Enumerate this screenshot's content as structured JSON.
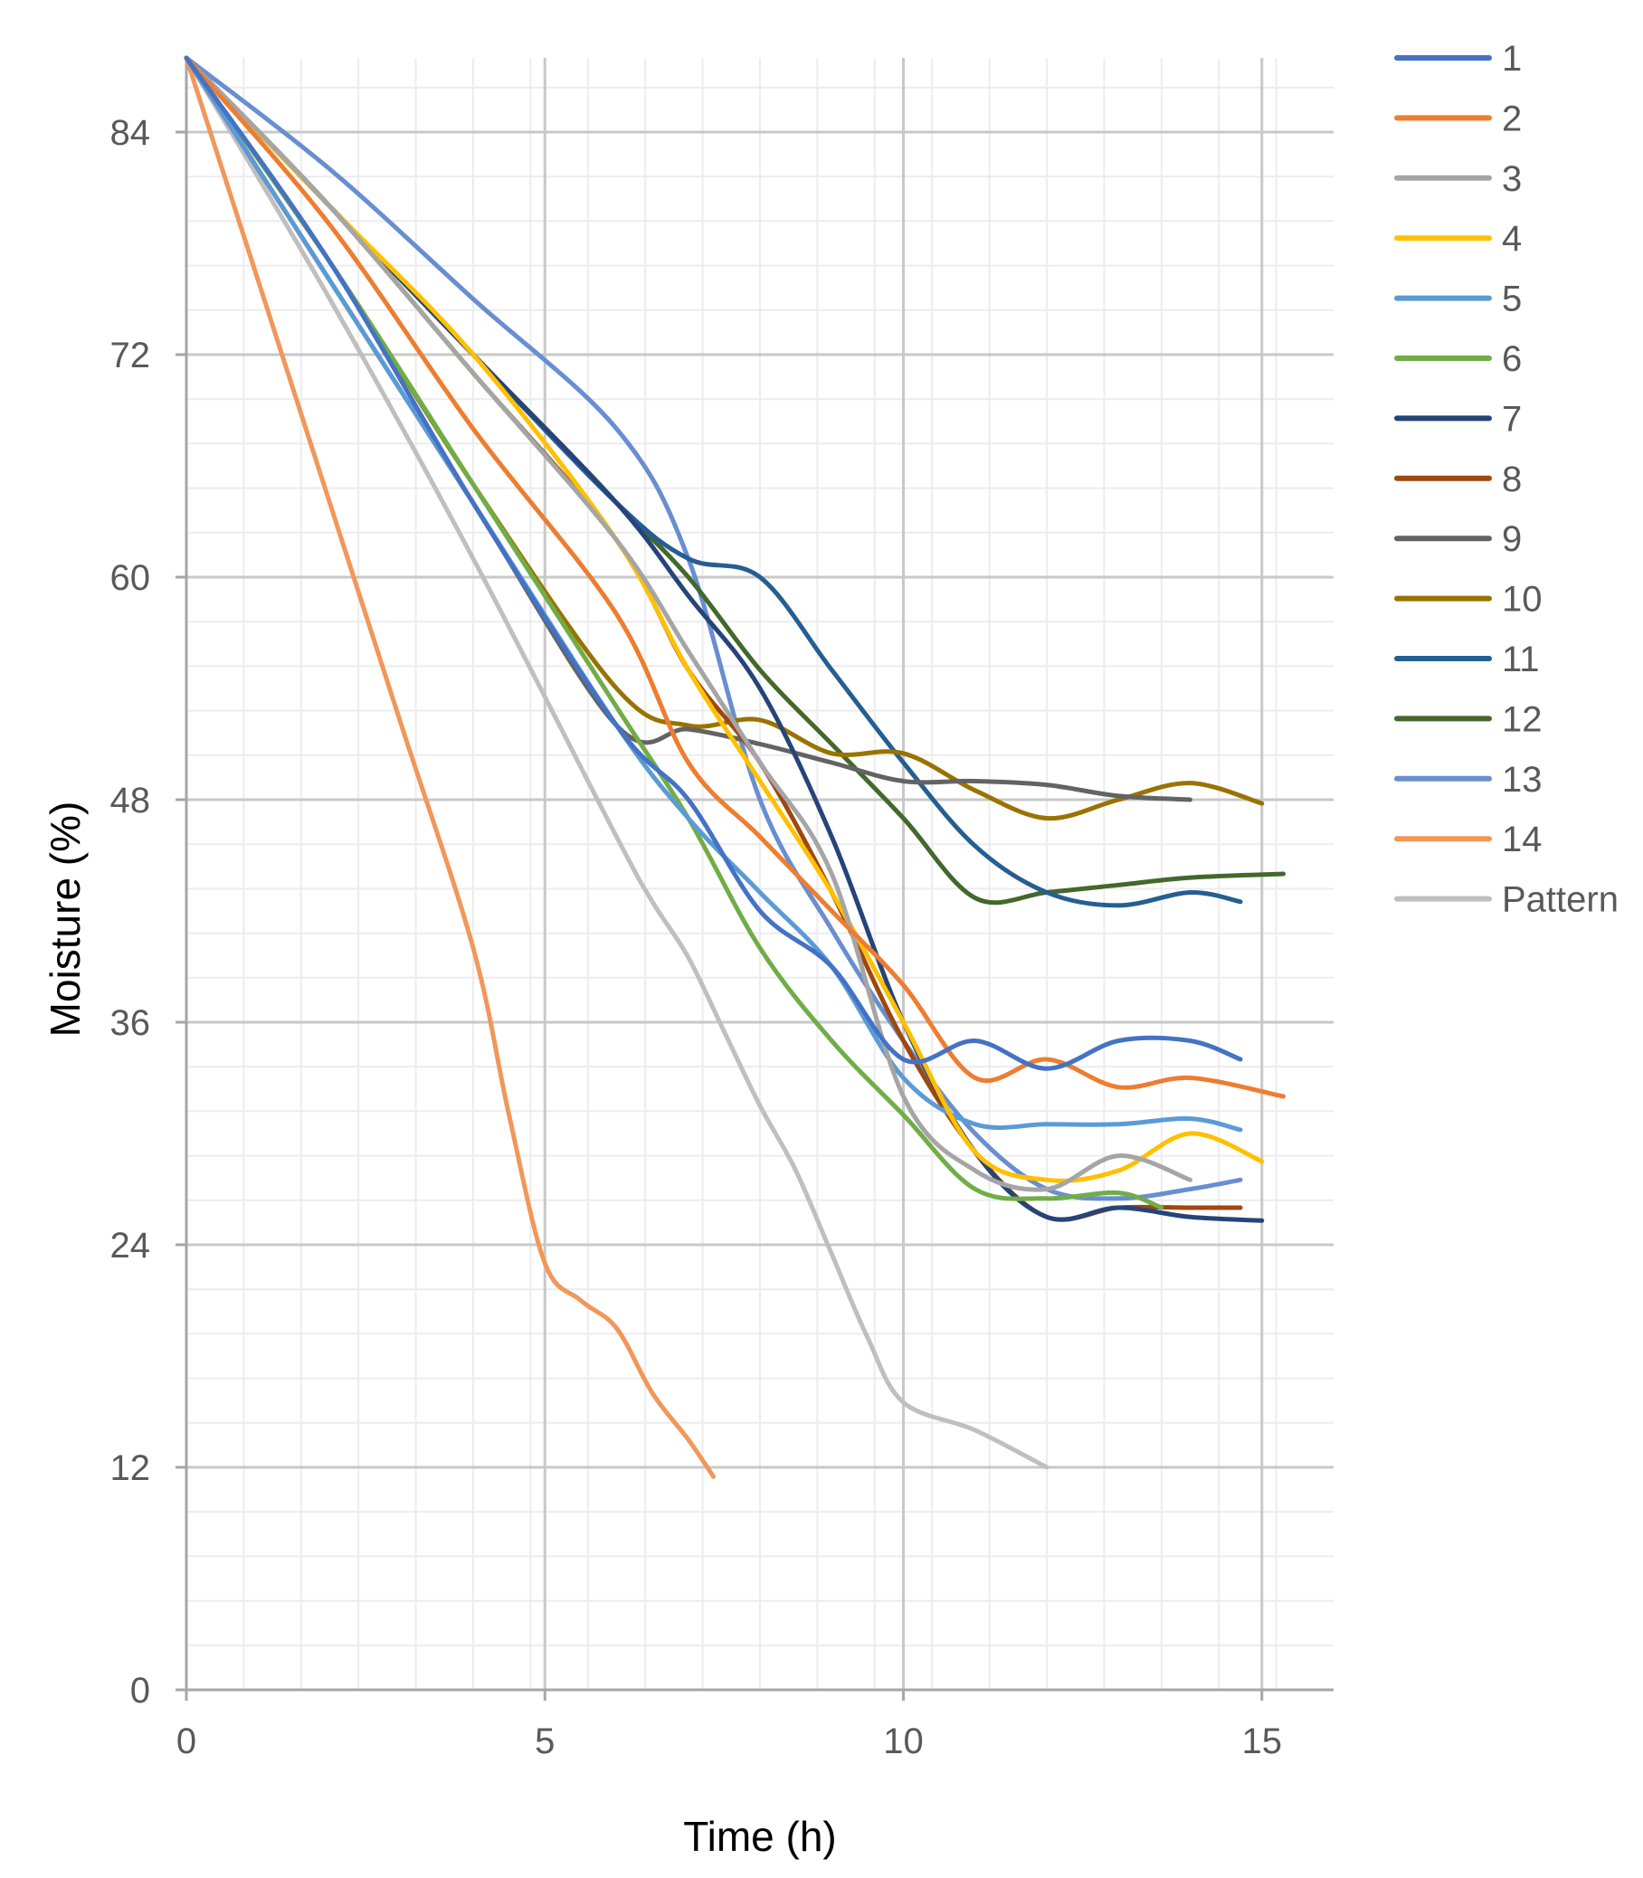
{
  "chart_data": {
    "type": "line",
    "title": "",
    "xlabel": "Time (h)",
    "ylabel": "Moisture (%)",
    "xlim": [
      0,
      16
    ],
    "ylim": [
      0,
      88
    ],
    "x_ticks": [
      0,
      5,
      10,
      15
    ],
    "y_ticks": [
      0,
      12,
      24,
      36,
      48,
      60,
      72,
      84
    ],
    "grid": true,
    "legend_position": "right",
    "series": [
      {
        "name": "1",
        "color": "#4472C4",
        "x": [
          0,
          2,
          4,
          6,
          7,
          8,
          9,
          10,
          11,
          12,
          13,
          14,
          14.7
        ],
        "y": [
          88,
          77,
          64,
          52,
          48,
          42,
          39,
          34,
          35,
          33.5,
          35,
          35,
          34
        ]
      },
      {
        "name": "2",
        "color": "#ED7D31",
        "x": [
          0,
          2,
          4,
          6,
          7,
          8,
          9,
          10,
          11,
          12,
          13,
          14,
          15.3
        ],
        "y": [
          88,
          79,
          68,
          58,
          50,
          46,
          42,
          38,
          33,
          34,
          32.5,
          33,
          32
        ]
      },
      {
        "name": "3",
        "color": "#A5A5A5",
        "x": [
          0,
          2,
          4,
          6,
          7,
          8,
          9,
          10,
          11,
          12,
          13,
          14
        ],
        "y": [
          88,
          80,
          71,
          62,
          56,
          50,
          44,
          32,
          28,
          27,
          28.8,
          27.5
        ]
      },
      {
        "name": "4",
        "color": "#FFC000",
        "x": [
          0,
          2,
          4,
          6,
          7,
          8,
          9,
          10,
          11,
          12,
          13,
          14,
          15
        ],
        "y": [
          88,
          80,
          72,
          62,
          55,
          49,
          43,
          36,
          29,
          27.5,
          28,
          30,
          28.5
        ]
      },
      {
        "name": "5",
        "color": "#5B9BD5",
        "x": [
          0,
          2,
          4,
          6,
          7,
          8,
          9,
          10,
          11,
          12,
          13,
          14,
          14.7
        ],
        "y": [
          88,
          76,
          64,
          52,
          47,
          43,
          39,
          33,
          30.5,
          30.5,
          30.5,
          30.8,
          30.2
        ]
      },
      {
        "name": "6",
        "color": "#70AD47",
        "x": [
          0,
          2,
          4,
          6,
          7,
          8,
          9,
          10,
          11,
          12,
          13,
          13.6
        ],
        "y": [
          88,
          77,
          65,
          53,
          47,
          40,
          35,
          31,
          27,
          26.5,
          26.8,
          26
        ]
      },
      {
        "name": "7",
        "color": "#264478",
        "x": [
          0,
          2,
          4,
          6,
          7,
          8,
          9,
          10,
          11,
          12,
          13,
          14,
          15
        ],
        "y": [
          88,
          80,
          72,
          64,
          59,
          54,
          46,
          36,
          29,
          25.5,
          26,
          25.5,
          25.3
        ]
      },
      {
        "name": "8",
        "color": "#9E480E",
        "x": [
          0,
          2,
          4,
          6,
          7,
          8,
          9,
          10,
          11,
          12,
          13,
          14,
          14.7
        ],
        "y": [
          88,
          80,
          71,
          62,
          55,
          50,
          43,
          35,
          29,
          25.5,
          26,
          26,
          26
        ]
      },
      {
        "name": "9",
        "color": "#636363",
        "x": [
          0,
          2,
          4,
          6,
          7,
          8,
          9,
          10,
          11,
          12,
          13,
          14
        ],
        "y": [
          88,
          76,
          64,
          52,
          51.8,
          51,
          50,
          49,
          49,
          48.8,
          48.2,
          48
        ]
      },
      {
        "name": "10",
        "color": "#997300",
        "x": [
          0,
          2,
          4,
          6,
          7,
          8,
          9,
          10,
          11,
          12,
          13,
          14,
          15
        ],
        "y": [
          88,
          77,
          65,
          54,
          52,
          52.3,
          50.5,
          50.5,
          48.5,
          47,
          48,
          48.9,
          47.8
        ]
      },
      {
        "name": "11",
        "color": "#255E91",
        "x": [
          0,
          2,
          4,
          6,
          7,
          8,
          9,
          10,
          11,
          12,
          13,
          14,
          14.7
        ],
        "y": [
          88,
          80,
          72,
          64,
          61,
          60,
          55,
          50,
          45.5,
          43,
          42.3,
          43,
          42.5
        ]
      },
      {
        "name": "12",
        "color": "#43682B",
        "x": [
          0,
          2,
          4,
          6,
          7,
          8,
          9,
          10,
          11,
          12,
          13,
          14,
          15.3
        ],
        "y": [
          88,
          80,
          72,
          64,
          60,
          55,
          51,
          47,
          42.7,
          43,
          43.4,
          43.8,
          44
        ]
      },
      {
        "name": "13",
        "color": "#698ED0",
        "x": [
          0,
          2,
          4,
          6,
          7,
          8,
          9,
          10,
          11,
          12,
          13,
          14,
          14.7
        ],
        "y": [
          88,
          82,
          75,
          68,
          61,
          48,
          41,
          35,
          30,
          27,
          26.5,
          27,
          27.5
        ]
      },
      {
        "name": "14",
        "color": "#F1975A",
        "x": [
          0,
          1,
          2,
          3,
          4,
          4.5,
          5,
          5.5,
          6,
          6.5,
          7,
          7.35
        ],
        "y": [
          88,
          76,
          64,
          52,
          40,
          31,
          23,
          21,
          19.5,
          16,
          13.5,
          11.5
        ]
      },
      {
        "name": "Pattern",
        "color": "#BFBFBF",
        "x": [
          0,
          2,
          4,
          6,
          6.5,
          7,
          7.5,
          8,
          8.5,
          9,
          9.5,
          10,
          11,
          12
        ],
        "y": [
          88,
          75,
          61,
          46,
          42.5,
          39.5,
          35.5,
          31.5,
          28,
          23.5,
          19,
          15.5,
          14,
          12
        ]
      }
    ]
  }
}
